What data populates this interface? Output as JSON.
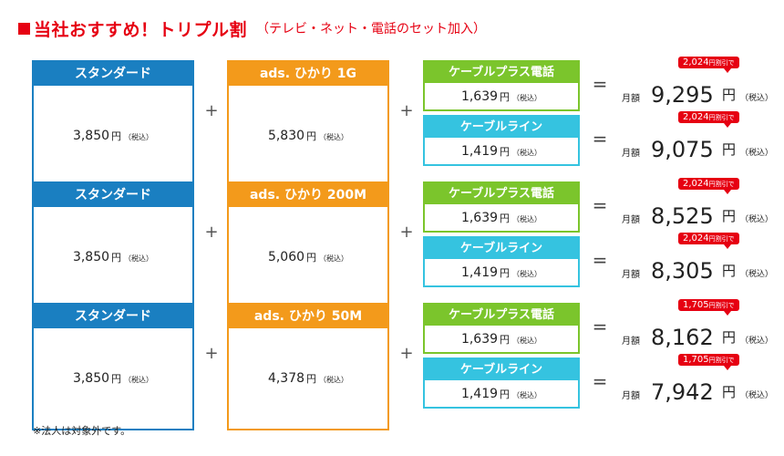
{
  "title": {
    "main": "当社おすすめ！トリプル割",
    "sub": "（テレビ・ネット・電話のセット加入）"
  },
  "labels": {
    "plus": "+",
    "equals": "=",
    "yen": "円",
    "tax": "（税込）",
    "monthly": "月額",
    "discount_unit": "円",
    "discount_suffix": "割引で"
  },
  "rows": [
    {
      "tv": {
        "name": "スタンダード",
        "price": "3,850"
      },
      "net": {
        "name": "ads. ひかり 1G",
        "price": "5,830"
      },
      "options": [
        {
          "name": "ケーブルプラス電話",
          "price": "1,639",
          "total": "9,295",
          "discount": "2,024"
        },
        {
          "name": "ケーブルライン",
          "price": "1,419",
          "total": "9,075",
          "discount": "2,024"
        }
      ]
    },
    {
      "tv": {
        "name": "スタンダード",
        "price": "3,850"
      },
      "net": {
        "name": "ads. ひかり 200M",
        "price": "5,060"
      },
      "options": [
        {
          "name": "ケーブルプラス電話",
          "price": "1,639",
          "total": "8,525",
          "discount": "2,024"
        },
        {
          "name": "ケーブルライン",
          "price": "1,419",
          "total": "8,305",
          "discount": "2,024"
        }
      ]
    },
    {
      "tv": {
        "name": "スタンダード",
        "price": "3,850"
      },
      "net": {
        "name": "ads. ひかり 50M",
        "price": "4,378"
      },
      "options": [
        {
          "name": "ケーブルプラス電話",
          "price": "1,639",
          "total": "8,162",
          "discount": "1,705"
        },
        {
          "name": "ケーブルライン",
          "price": "1,419",
          "total": "7,942",
          "discount": "1,705"
        }
      ]
    }
  ],
  "note": "※法人は対象外です。"
}
